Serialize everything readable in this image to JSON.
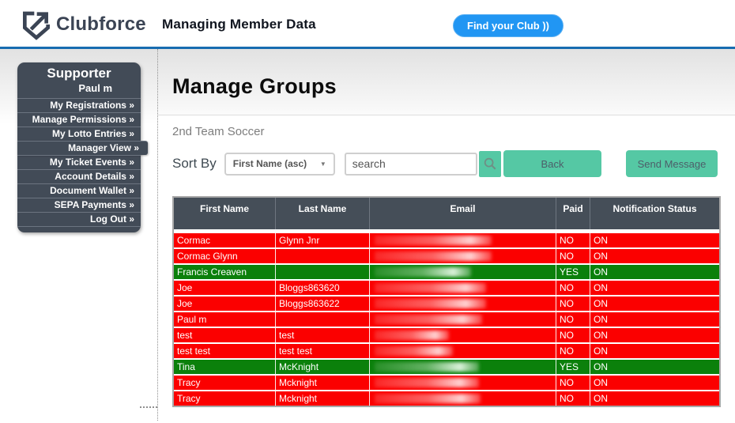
{
  "header": {
    "logo_text": "Clubforce",
    "title": "Managing Member Data",
    "find_club_label": "Find your Club ))"
  },
  "sidebar": {
    "role": "Supporter",
    "user": "Paul m",
    "items": [
      {
        "label": "My Registrations »"
      },
      {
        "label": "Manage Permissions »"
      },
      {
        "label": "My Lotto Entries »"
      },
      {
        "label": "Manager View »",
        "active": true
      },
      {
        "label": "My Ticket Events »"
      },
      {
        "label": "Account Details »"
      },
      {
        "label": "Document Wallet »"
      },
      {
        "label": "SEPA Payments »"
      },
      {
        "label": "Log Out »"
      }
    ]
  },
  "main": {
    "title": "Manage Groups",
    "group_name": "2nd Team Soccer",
    "sort_by_label": "Sort By",
    "sort_value": "First Name (asc)",
    "search_placeholder": "search",
    "back_label": "Back",
    "send_message_label": "Send Message"
  },
  "table": {
    "columns": [
      "First Name",
      "Last Name",
      "Email",
      "Paid",
      "Notification Status"
    ],
    "emails_redacted": true,
    "rows": [
      {
        "first_name": "Cormac",
        "last_name": "Glynn Jnr",
        "paid": "NO",
        "notification": "ON"
      },
      {
        "first_name": "Cormac Glynn",
        "last_name": "",
        "paid": "NO",
        "notification": "ON"
      },
      {
        "first_name": "Francis Creaven",
        "last_name": "",
        "paid": "YES",
        "notification": "ON"
      },
      {
        "first_name": "Joe",
        "last_name": "Bloggs863620",
        "paid": "NO",
        "notification": "ON"
      },
      {
        "first_name": "Joe",
        "last_name": "Bloggs863622",
        "paid": "NO",
        "notification": "ON"
      },
      {
        "first_name": "Paul m",
        "last_name": "",
        "paid": "NO",
        "notification": "ON"
      },
      {
        "first_name": "test",
        "last_name": "test",
        "paid": "NO",
        "notification": "ON"
      },
      {
        "first_name": "test test",
        "last_name": "test test",
        "paid": "NO",
        "notification": "ON"
      },
      {
        "first_name": "Tina",
        "last_name": "McKnight",
        "paid": "YES",
        "notification": "ON"
      },
      {
        "first_name": "Tracy",
        "last_name": "Mcknight",
        "paid": "NO",
        "notification": "ON"
      },
      {
        "first_name": "Tracy",
        "last_name": "Mcknight",
        "paid": "NO",
        "notification": "ON"
      }
    ]
  },
  "colors": {
    "accent_teal": "#55c8a4",
    "brand_blue": "#2196f3",
    "header_rule_blue": "#176cb0",
    "slate_dark": "#454e58",
    "row_unpaid_red": "#fb0000",
    "row_paid_green": "#0b800b"
  }
}
